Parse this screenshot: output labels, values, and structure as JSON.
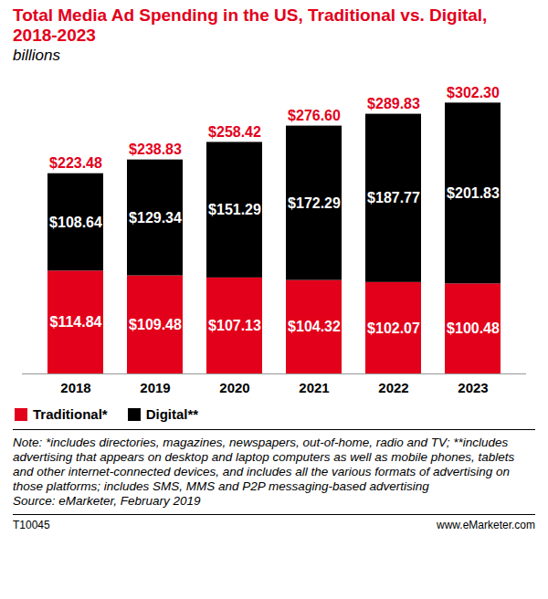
{
  "chart_data": {
    "type": "bar",
    "title": "Total Media Ad Spending in the US, Traditional vs. Digital, 2018-2023",
    "subtitle": "billions",
    "categories": [
      "2018",
      "2019",
      "2020",
      "2021",
      "2022",
      "2023"
    ],
    "series": [
      {
        "name": "Traditional*",
        "color": "#e3001b",
        "values": [
          114.84,
          109.48,
          107.13,
          104.32,
          102.07,
          100.48
        ],
        "value_labels": [
          "$114.84",
          "$109.48",
          "$107.13",
          "$104.32",
          "$102.07",
          "$100.48"
        ]
      },
      {
        "name": "Digital**",
        "color": "#000000",
        "values": [
          108.64,
          129.34,
          151.29,
          172.29,
          187.77,
          201.83
        ],
        "value_labels": [
          "$108.64",
          "$129.34",
          "$151.29",
          "$172.29",
          "$187.77",
          "$201.83"
        ]
      }
    ],
    "totals": [
      223.48,
      238.83,
      258.42,
      276.6,
      289.83,
      302.3
    ],
    "total_labels": [
      "$223.48",
      "$238.83",
      "$258.42",
      "$276.60",
      "$289.83",
      "$302.30"
    ],
    "total_color": "#e3001b",
    "ylim": [
      0,
      320
    ],
    "stacked": true,
    "data_labels": true,
    "tick_labels": "x",
    "grid": false,
    "legend": "bottom-left",
    "note": "Note: *includes directories, magazines, newspapers, out-of-home, radio and TV; **includes advertising that appears on desktop and laptop computers as well as mobile phones, tablets and other internet-connected devices, and includes all the various formats of advertising on those platforms; includes SMS, MMS and P2P messaging-based advertising",
    "source": "Source: eMarketer, February 2019",
    "chart_id": "T10045",
    "website": "www.eMarketer.com"
  }
}
